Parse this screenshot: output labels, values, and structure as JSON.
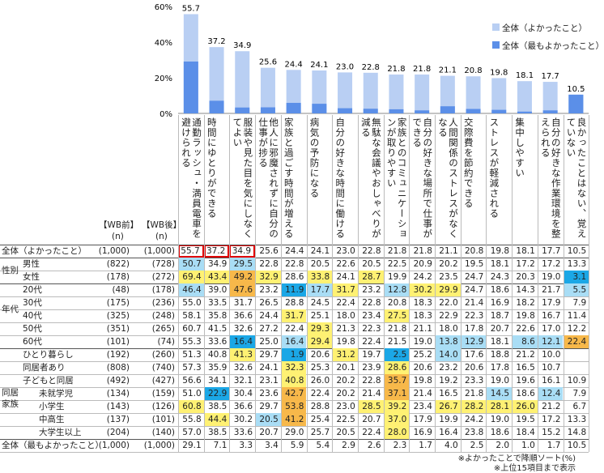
{
  "chart_data": {
    "type": "bar",
    "yticks": [
      "60%",
      "40%",
      "20%",
      "0%"
    ],
    "ylim": [
      0,
      60
    ],
    "legend": [
      {
        "label": "全体（よかったこと）",
        "color": "#b9cff3"
      },
      {
        "label": "全体（最もよかったこと）",
        "color": "#5b8fe8"
      }
    ],
    "categories": [
      "通勤ラッシュ・満員電車を避けられる",
      "時間にゆとりができる",
      "服装や見た目を気にしなくてよい",
      "他人に邪魔されずに自分の仕事が捗る",
      "家族と過ごす時間が増える",
      "病気の予防になる",
      "自分の好きな時間に働ける",
      "無駄な会議やおしゃべりが減る",
      "家族とのコミュニケーションが取りやすい",
      "自分の好きな場所で仕事ができる",
      "人間関係のストレスがなくなる",
      "交際費を節約できる",
      "ストレスが軽減される",
      "集中しやすい",
      "自分の好きな作業環境を整えられる",
      "良かったことはない、覚えていない"
    ],
    "series": [
      {
        "name": "全体（よかったこと）",
        "values": [
          55.7,
          37.2,
          34.9,
          25.6,
          24.4,
          24.1,
          23.0,
          22.8,
          21.8,
          21.8,
          21.1,
          20.8,
          19.8,
          18.1,
          17.7,
          10.5
        ]
      },
      {
        "name": "全体（最もよかったこと）",
        "values": [
          29.1,
          7.1,
          3.3,
          3.4,
          5.9,
          5.4,
          2.9,
          2.6,
          2.3,
          1.7,
          4.0,
          2.5,
          2.0,
          1.0,
          1.7,
          10.5
        ]
      }
    ],
    "bar_labels": [
      "55.7",
      "37.2",
      "34.9",
      "25.6",
      "24.4",
      "24.1",
      "23.0",
      "22.8",
      "21.8",
      "21.8",
      "21.1",
      "20.8",
      "19.8",
      "18.1",
      "17.7",
      "10.5"
    ]
  },
  "table": {
    "col_headers": {
      "wb_before": "【WB前】",
      "wb_after": "【WB後】",
      "n": "(n)"
    },
    "group_labels": {
      "sex": "性別",
      "age": "年代",
      "family": "同居家族"
    },
    "rows": [
      {
        "label": "全体（よかったこと）",
        "n1": "(1,000)",
        "n2": "(1,000)",
        "v": [
          "55.7",
          "37.2",
          "34.9",
          "25.6",
          "24.4",
          "24.1",
          "23.0",
          "22.8",
          "21.8",
          "21.8",
          "21.1",
          "20.8",
          "19.8",
          "18.1",
          "17.7",
          "10.5"
        ],
        "hl": [
          "r",
          "r",
          "r",
          "",
          "",
          "",
          "",
          "",
          "",
          "",
          "",
          "",
          "",
          "",
          "",
          ""
        ]
      },
      {
        "label": "男性",
        "n1": "(822)",
        "n2": "(728)",
        "v": [
          "50.7",
          "34.9",
          "29.5",
          "22.8",
          "22.8",
          "20.5",
          "22.6",
          "20.5",
          "22.5",
          "20.9",
          "20.2",
          "19.5",
          "18.1",
          "17.2",
          "17.2",
          "13.3"
        ],
        "hl": [
          "lb",
          "",
          "lb",
          "",
          "",
          "",
          "",
          "",
          "",
          "",
          "",
          "",
          "",
          "",
          "",
          ""
        ]
      },
      {
        "label": "女性",
        "n1": "(178)",
        "n2": "(272)",
        "v": [
          "69.4",
          "43.4",
          "49.2",
          "32.9",
          "28.6",
          "33.8",
          "24.1",
          "28.7",
          "19.9",
          "24.2",
          "23.5",
          "24.7",
          "24.3",
          "20.3",
          "19.0",
          "3.1"
        ],
        "hl": [
          "y",
          "y",
          "o",
          "y",
          "",
          "y",
          "",
          "y",
          "",
          "",
          "",
          "",
          "",
          "",
          "",
          "b"
        ]
      },
      {
        "label": "20代",
        "n1": "(48)",
        "n2": "(178)",
        "v": [
          "46.4",
          "39.0",
          "47.6",
          "23.2",
          "11.9",
          "17.7",
          "31.7",
          "23.2",
          "12.8",
          "30.2",
          "29.9",
          "24.7",
          "18.6",
          "14.3",
          "21.7",
          "5.5"
        ],
        "hl": [
          "lb",
          "",
          "o",
          "",
          "b",
          "lb",
          "y",
          "",
          "lb",
          "y",
          "y",
          "",
          "",
          "",
          "",
          "lb"
        ]
      },
      {
        "label": "30代",
        "n1": "(175)",
        "n2": "(236)",
        "v": [
          "55.0",
          "33.5",
          "31.7",
          "26.5",
          "28.8",
          "24.5",
          "22.4",
          "22.8",
          "20.8",
          "18.3",
          "22.0",
          "21.4",
          "16.9",
          "18.2",
          "17.9",
          "7.9"
        ],
        "hl": [
          "",
          "",
          "",
          "",
          "",
          "",
          "",
          "",
          "",
          "",
          "",
          "",
          "",
          "",
          "",
          ""
        ]
      },
      {
        "label": "40代",
        "n1": "(325)",
        "n2": "(248)",
        "v": [
          "58.1",
          "35.8",
          "36.6",
          "24.4",
          "31.7",
          "25.1",
          "18.0",
          "23.4",
          "27.5",
          "18.3",
          "22.9",
          "22.3",
          "18.7",
          "19.8",
          "16.7",
          "11.4"
        ],
        "hl": [
          "",
          "",
          "",
          "",
          "y",
          "",
          "",
          "",
          "y",
          "",
          "",
          "",
          "",
          "",
          "",
          ""
        ]
      },
      {
        "label": "50代",
        "n1": "(351)",
        "n2": "(265)",
        "v": [
          "60.7",
          "41.5",
          "32.6",
          "27.2",
          "22.4",
          "29.3",
          "21.3",
          "22.3",
          "21.8",
          "21.1",
          "18.0",
          "17.8",
          "20.7",
          "22.6",
          "17.0",
          "12.2"
        ],
        "hl": [
          "",
          "",
          "",
          "",
          "",
          "y",
          "",
          "",
          "",
          "",
          "",
          "",
          "",
          "",
          "",
          ""
        ]
      },
      {
        "label": "60代",
        "n1": "(101)",
        "n2": "(74)",
        "v": [
          "55.3",
          "33.6",
          "16.4",
          "25.0",
          "16.4",
          "29.4",
          "19.8",
          "22.4",
          "21.5",
          "19.0",
          "13.8",
          "12.9",
          "18.1",
          "8.6",
          "12.1",
          "22.4"
        ],
        "hl": [
          "",
          "",
          "b",
          "",
          "lb",
          "y",
          "",
          "",
          "",
          "",
          "lb",
          "lb",
          "",
          "lb",
          "lb",
          "o"
        ]
      },
      {
        "label": "ひとり暮らし",
        "n1": "(192)",
        "n2": "(260)",
        "v": [
          "51.3",
          "40.8",
          "41.3",
          "29.7",
          "1.9",
          "20.6",
          "31.2",
          "19.7",
          "2.5",
          "25.2",
          "14.0",
          "17.6",
          "18.8",
          "21.2",
          "10.0",
          ""
        ],
        "hl": [
          "",
          "",
          "y",
          "",
          "b",
          "",
          "y",
          "",
          "b",
          "",
          "lb",
          "",
          "",
          "",
          "",
          ""
        ]
      },
      {
        "label": "同居者あり",
        "n1": "(808)",
        "n2": "(740)",
        "v": [
          "57.3",
          "35.9",
          "32.6",
          "24.1",
          "32.3",
          "25.3",
          "20.1",
          "23.9",
          "28.6",
          "20.6",
          "23.2",
          "20.6",
          "17.8",
          "16.5",
          "10.7",
          ""
        ],
        "hl": [
          "",
          "",
          "",
          "",
          "y",
          "",
          "",
          "",
          "y",
          "",
          "",
          "",
          "",
          "",
          "",
          ""
        ]
      },
      {
        "label": "子どもと同居",
        "n1": "(492)",
        "n2": "(427)",
        "v": [
          "56.6",
          "34.1",
          "32.1",
          "23.1",
          "40.8",
          "26.0",
          "20.2",
          "22.8",
          "35.7",
          "19.8",
          "19.2",
          "23.3",
          "19.0",
          "19.6",
          "16.1",
          "10.9"
        ],
        "hl": [
          "",
          "",
          "",
          "",
          "y",
          "",
          "",
          "",
          "o",
          "",
          "",
          "",
          "",
          "",
          "",
          ""
        ]
      },
      {
        "label": "未就学児",
        "n1": "(134)",
        "n2": "(159)",
        "v": [
          "51.0",
          "22.9",
          "30.4",
          "23.6",
          "42.7",
          "22.4",
          "20.2",
          "21.4",
          "37.1",
          "21.4",
          "16.5",
          "21.8",
          "14.5",
          "18.6",
          "12.4",
          "7.9"
        ],
        "hl": [
          "",
          "b",
          "",
          "",
          "o",
          "",
          "",
          "",
          "o",
          "",
          "",
          "",
          "lb",
          "",
          "lb",
          ""
        ]
      },
      {
        "label": "小学生",
        "n1": "(143)",
        "n2": "(126)",
        "v": [
          "60.8",
          "38.5",
          "36.6",
          "29.7",
          "53.8",
          "28.8",
          "23.0",
          "28.5",
          "39.2",
          "23.4",
          "26.7",
          "28.2",
          "28.1",
          "26.0",
          "21.2",
          "6.7"
        ],
        "hl": [
          "y",
          "",
          "",
          "",
          "o",
          "",
          "",
          "y",
          "y",
          "",
          "y",
          "y",
          "y",
          "y",
          "",
          ""
        ]
      },
      {
        "label": "中高生",
        "n1": "(137)",
        "n2": "(101)",
        "v": [
          "55.8",
          "44.4",
          "30.2",
          "20.5",
          "41.2",
          "25.4",
          "22.5",
          "20.7",
          "37.0",
          "17.9",
          "19.9",
          "24.2",
          "19.0",
          "19.5",
          "17.2",
          "13.3"
        ],
        "hl": [
          "",
          "y",
          "",
          "lb",
          "o",
          "",
          "",
          "",
          "y",
          "",
          "",
          "",
          "",
          "",
          "",
          ""
        ]
      },
      {
        "label": "大学生以上",
        "n1": "(204)",
        "n2": "(140)",
        "v": [
          "57.0",
          "38.5",
          "33.6",
          "20.7",
          "29.0",
          "25.7",
          "20.5",
          "22.4",
          "28.0",
          "16.9",
          "16.4",
          "23.8",
          "18.6",
          "18.4",
          "15.2",
          "14.8"
        ],
        "hl": [
          "",
          "",
          "",
          "",
          "",
          "",
          "",
          "",
          "y",
          "",
          "",
          "",
          "",
          "",
          "",
          ""
        ]
      },
      {
        "label": "全体（最もよかったこと）",
        "n1": "(1,000)",
        "n2": "(1,000)",
        "v": [
          "29.1",
          "7.1",
          "3.3",
          "3.4",
          "5.9",
          "5.4",
          "2.9",
          "2.6",
          "2.3",
          "1.7",
          "4.0",
          "2.5",
          "2.0",
          "1.0",
          "1.7",
          "10.5"
        ],
        "hl": [
          "",
          "",
          "",
          "",
          "",
          "",
          "",
          "",
          "",
          "",
          "",
          "",
          "",
          "",
          "",
          ""
        ]
      }
    ]
  },
  "colors": {
    "light_bar": "#b9cff3",
    "dark_bar": "#5b8fe8",
    "yellow": "#fff173",
    "orange": "#f7b84a",
    "blue": "#1ba7e6",
    "light_blue": "#a9ddf5",
    "red_box": "#e00000"
  },
  "footnotes": [
    "※よかったことで降順ソート(%)",
    "※上位15項目まで表示"
  ]
}
